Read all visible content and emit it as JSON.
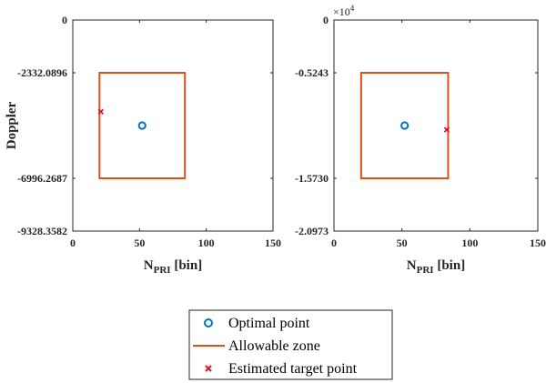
{
  "chart_data": [
    {
      "type": "line",
      "title": "",
      "xlabel": "N",
      "xlabel_sub": "PRI",
      "xlabel_unit": "[bin]",
      "ylabel": "Doppler",
      "xlim": [
        0,
        150
      ],
      "ylim": [
        -9328.3582,
        0
      ],
      "y_reversed": true,
      "xticks": [
        "0",
        "50",
        "100",
        "150"
      ],
      "xtick_values": [
        0,
        50,
        100,
        150
      ],
      "yticks": [
        "0",
        "-2332.0896",
        "-6996.2687",
        "-9328.3582"
      ],
      "ytick_values": [
        0,
        -2332.0896,
        -6996.2687,
        -9328.3582
      ],
      "series": [
        {
          "name": "Allowable zone",
          "kind": "rectangle",
          "x0": 20,
          "x1": 84,
          "y0": -2332.0896,
          "y1": -6996.2687
        },
        {
          "name": "Optimal point",
          "kind": "point",
          "x": 52,
          "y": -4664.2
        },
        {
          "name": "Estimated target point",
          "kind": "point",
          "x": 21,
          "y": -4050
        }
      ]
    },
    {
      "type": "line",
      "title": "",
      "xlabel": "N",
      "xlabel_sub": "PRI",
      "xlabel_unit": "[bin]",
      "ylabel": "",
      "xlim": [
        0,
        150
      ],
      "ylim": [
        -2.0973,
        0
      ],
      "y_reversed": true,
      "y_exponent_base": "×10",
      "y_exponent_power": "4",
      "xticks": [
        "0",
        "50",
        "100",
        "150"
      ],
      "xtick_values": [
        0,
        50,
        100,
        150
      ],
      "yticks": [
        "0",
        "-0.5243",
        "-1.5730",
        "-2.0973"
      ],
      "ytick_values": [
        0,
        -0.5243,
        -1.573,
        -2.0973
      ],
      "series": [
        {
          "name": "Allowable zone",
          "kind": "rectangle",
          "x0": 20,
          "x1": 84,
          "y0": -0.5243,
          "y1": -1.573
        },
        {
          "name": "Optimal point",
          "kind": "point",
          "x": 52,
          "y": -1.0487
        },
        {
          "name": "Estimated target point",
          "kind": "point",
          "x": 83,
          "y": -1.09
        }
      ]
    }
  ],
  "legend": {
    "placement": "bottom-center",
    "items": [
      {
        "label": "Optimal point",
        "marker": "circle"
      },
      {
        "label": "Allowable zone",
        "marker": "line"
      },
      {
        "label": "Estimated target point",
        "marker": "cross"
      }
    ]
  },
  "colors": {
    "optimal": "#0072BD",
    "zone": "#D95319",
    "estimated": "#E0102A",
    "axes": "#262626"
  }
}
